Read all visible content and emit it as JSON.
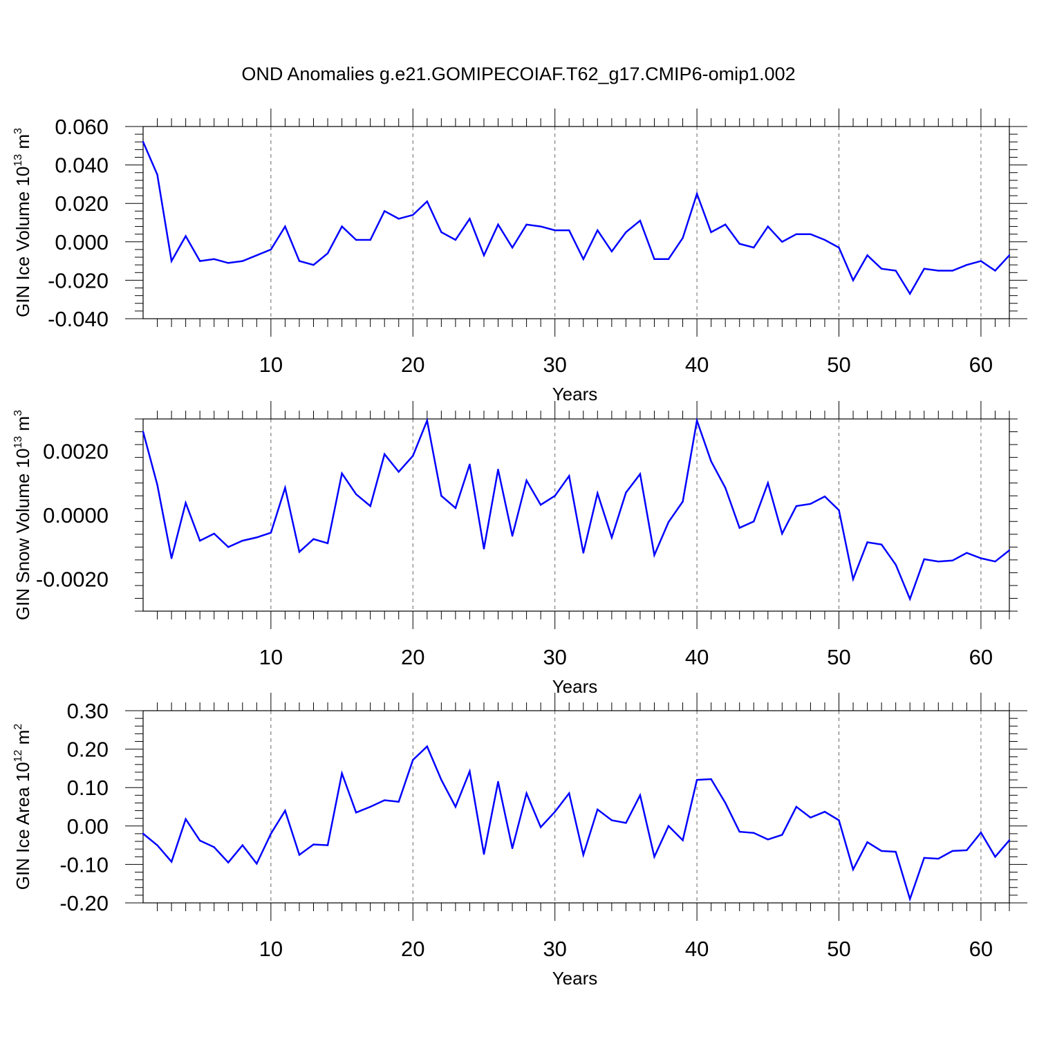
{
  "page_title": "OND Anomalies g.e21.GOMIPECOIAF.T62_g17.CMIP6-omip1.002",
  "line_color": "#0000ff",
  "chart_data": [
    {
      "type": "line",
      "ylabel": "GIN Ice Volume 10",
      "ylabel_exp": "13",
      "ylabel_unit": "m",
      "ylabel_unit_exp": "3",
      "xlabel": "Years",
      "xlim": [
        1,
        62
      ],
      "ylim": [
        -0.04,
        0.06
      ],
      "x_ticks": [
        10,
        20,
        30,
        40,
        50,
        60
      ],
      "x_tick_labels": [
        "10",
        "20",
        "30",
        "40",
        "50",
        "60"
      ],
      "y_ticks": [
        -0.04,
        -0.02,
        0.0,
        0.02,
        0.04,
        0.06
      ],
      "y_tick_labels": [
        "-0.040",
        "-0.020",
        "0.000",
        "0.020",
        "0.040",
        "0.060"
      ],
      "grid": "vertical dashed at major x ticks",
      "x": [
        1,
        2,
        3,
        4,
        5,
        6,
        7,
        8,
        9,
        10,
        11,
        12,
        13,
        14,
        15,
        16,
        17,
        18,
        19,
        20,
        21,
        22,
        23,
        24,
        25,
        26,
        27,
        28,
        29,
        30,
        31,
        32,
        33,
        34,
        35,
        36,
        37,
        38,
        39,
        40,
        41,
        42,
        43,
        44,
        45,
        46,
        47,
        48,
        49,
        50,
        51,
        52,
        53,
        54,
        55,
        56,
        57,
        58,
        59,
        60,
        61,
        62
      ],
      "values": [
        0.052,
        0.035,
        -0.01,
        0.003,
        -0.01,
        -0.009,
        -0.011,
        -0.01,
        -0.007,
        -0.004,
        0.008,
        -0.01,
        -0.012,
        -0.006,
        0.008,
        0.001,
        0.001,
        0.016,
        0.012,
        0.014,
        0.021,
        0.005,
        0.001,
        0.012,
        -0.007,
        0.009,
        -0.003,
        0.009,
        0.008,
        0.006,
        0.006,
        -0.009,
        0.006,
        -0.005,
        0.005,
        0.011,
        -0.009,
        -0.009,
        0.002,
        0.025,
        0.005,
        0.009,
        -0.001,
        -0.003,
        0.008,
        0.0,
        0.004,
        0.004,
        0.001,
        -0.003,
        -0.02,
        -0.007,
        -0.014,
        -0.015,
        -0.027,
        -0.014,
        -0.015,
        -0.015,
        -0.012,
        -0.01,
        -0.015,
        -0.007
      ]
    },
    {
      "type": "line",
      "ylabel": "GIN Snow Volume 10",
      "ylabel_exp": "13",
      "ylabel_unit": "m",
      "ylabel_unit_exp": "3",
      "xlabel": "Years",
      "xlim": [
        1,
        62
      ],
      "ylim": [
        -0.003,
        0.003
      ],
      "x_ticks": [
        10,
        20,
        30,
        40,
        50,
        60
      ],
      "x_tick_labels": [
        "10",
        "20",
        "30",
        "40",
        "50",
        "60"
      ],
      "y_ticks": [
        -0.002,
        0.0,
        0.002
      ],
      "y_tick_labels": [
        "-0.0020",
        "0.0000",
        "0.0020"
      ],
      "grid": "vertical dashed at major x ticks",
      "x": [
        1,
        2,
        3,
        4,
        5,
        6,
        7,
        8,
        9,
        10,
        11,
        12,
        13,
        14,
        15,
        16,
        17,
        18,
        19,
        20,
        21,
        22,
        23,
        24,
        25,
        26,
        27,
        28,
        29,
        30,
        31,
        32,
        33,
        34,
        35,
        36,
        37,
        38,
        39,
        40,
        41,
        42,
        43,
        44,
        45,
        46,
        47,
        48,
        49,
        50,
        51,
        52,
        53,
        54,
        55,
        56,
        57,
        58,
        59,
        60,
        61,
        62
      ],
      "values": [
        0.0026,
        0.00095,
        -0.00135,
        0.00038,
        -0.0008,
        -0.00058,
        -0.001,
        -0.0008,
        -0.0007,
        -0.00055,
        0.00085,
        -0.00115,
        -0.00075,
        -0.00088,
        0.0013,
        0.00065,
        0.00028,
        0.0019,
        0.00135,
        0.00185,
        0.00295,
        0.0006,
        0.00022,
        0.00158,
        -0.00105,
        0.00142,
        -0.00065,
        0.00108,
        0.00032,
        0.0006,
        0.00122,
        -0.00118,
        0.00068,
        -0.0007,
        0.0007,
        0.00128,
        -0.00125,
        -0.00022,
        0.00042,
        0.00295,
        0.00168,
        0.00085,
        -0.0004,
        -0.0002,
        0.001,
        -0.00058,
        0.00028,
        0.00035,
        0.00058,
        0.00015,
        -0.002,
        -0.00085,
        -0.00092,
        -0.00155,
        -0.00262,
        -0.00138,
        -0.00145,
        -0.00142,
        -0.00118,
        -0.00135,
        -0.00145,
        -0.0011
      ]
    },
    {
      "type": "line",
      "ylabel": "GIN Ice Area 10",
      "ylabel_exp": "12",
      "ylabel_unit": "m",
      "ylabel_unit_exp": "2",
      "xlabel": "Years",
      "xlim": [
        1,
        62
      ],
      "ylim": [
        -0.2,
        0.3
      ],
      "x_ticks": [
        10,
        20,
        30,
        40,
        50,
        60
      ],
      "x_tick_labels": [
        "10",
        "20",
        "30",
        "40",
        "50",
        "60"
      ],
      "y_ticks": [
        -0.2,
        -0.1,
        0.0,
        0.1,
        0.2,
        0.3
      ],
      "y_tick_labels": [
        "-0.20",
        "-0.10",
        "0.00",
        "0.10",
        "0.20",
        "0.30"
      ],
      "grid": "vertical dashed at major x ticks",
      "x": [
        1,
        2,
        3,
        4,
        5,
        6,
        7,
        8,
        9,
        10,
        11,
        12,
        13,
        14,
        15,
        16,
        17,
        18,
        19,
        20,
        21,
        22,
        23,
        24,
        25,
        26,
        27,
        28,
        29,
        30,
        31,
        32,
        33,
        34,
        35,
        36,
        37,
        38,
        39,
        40,
        41,
        42,
        43,
        44,
        45,
        46,
        47,
        48,
        49,
        50,
        51,
        52,
        53,
        54,
        55,
        56,
        57,
        58,
        59,
        60,
        61,
        62
      ],
      "values": [
        -0.02,
        -0.05,
        -0.093,
        0.018,
        -0.038,
        -0.055,
        -0.095,
        -0.05,
        -0.098,
        -0.02,
        0.04,
        -0.075,
        -0.048,
        -0.05,
        0.137,
        0.035,
        0.05,
        0.067,
        0.063,
        0.172,
        0.207,
        0.12,
        0.05,
        0.142,
        -0.073,
        0.115,
        -0.058,
        0.085,
        -0.003,
        0.037,
        0.085,
        -0.075,
        0.043,
        0.015,
        0.008,
        0.08,
        -0.08,
        0.0,
        -0.037,
        0.12,
        0.122,
        0.06,
        -0.015,
        -0.018,
        -0.035,
        -0.023,
        0.05,
        0.022,
        0.037,
        0.015,
        -0.113,
        -0.042,
        -0.065,
        -0.067,
        -0.19,
        -0.083,
        -0.085,
        -0.065,
        -0.063,
        -0.017,
        -0.08,
        -0.037
      ]
    }
  ]
}
